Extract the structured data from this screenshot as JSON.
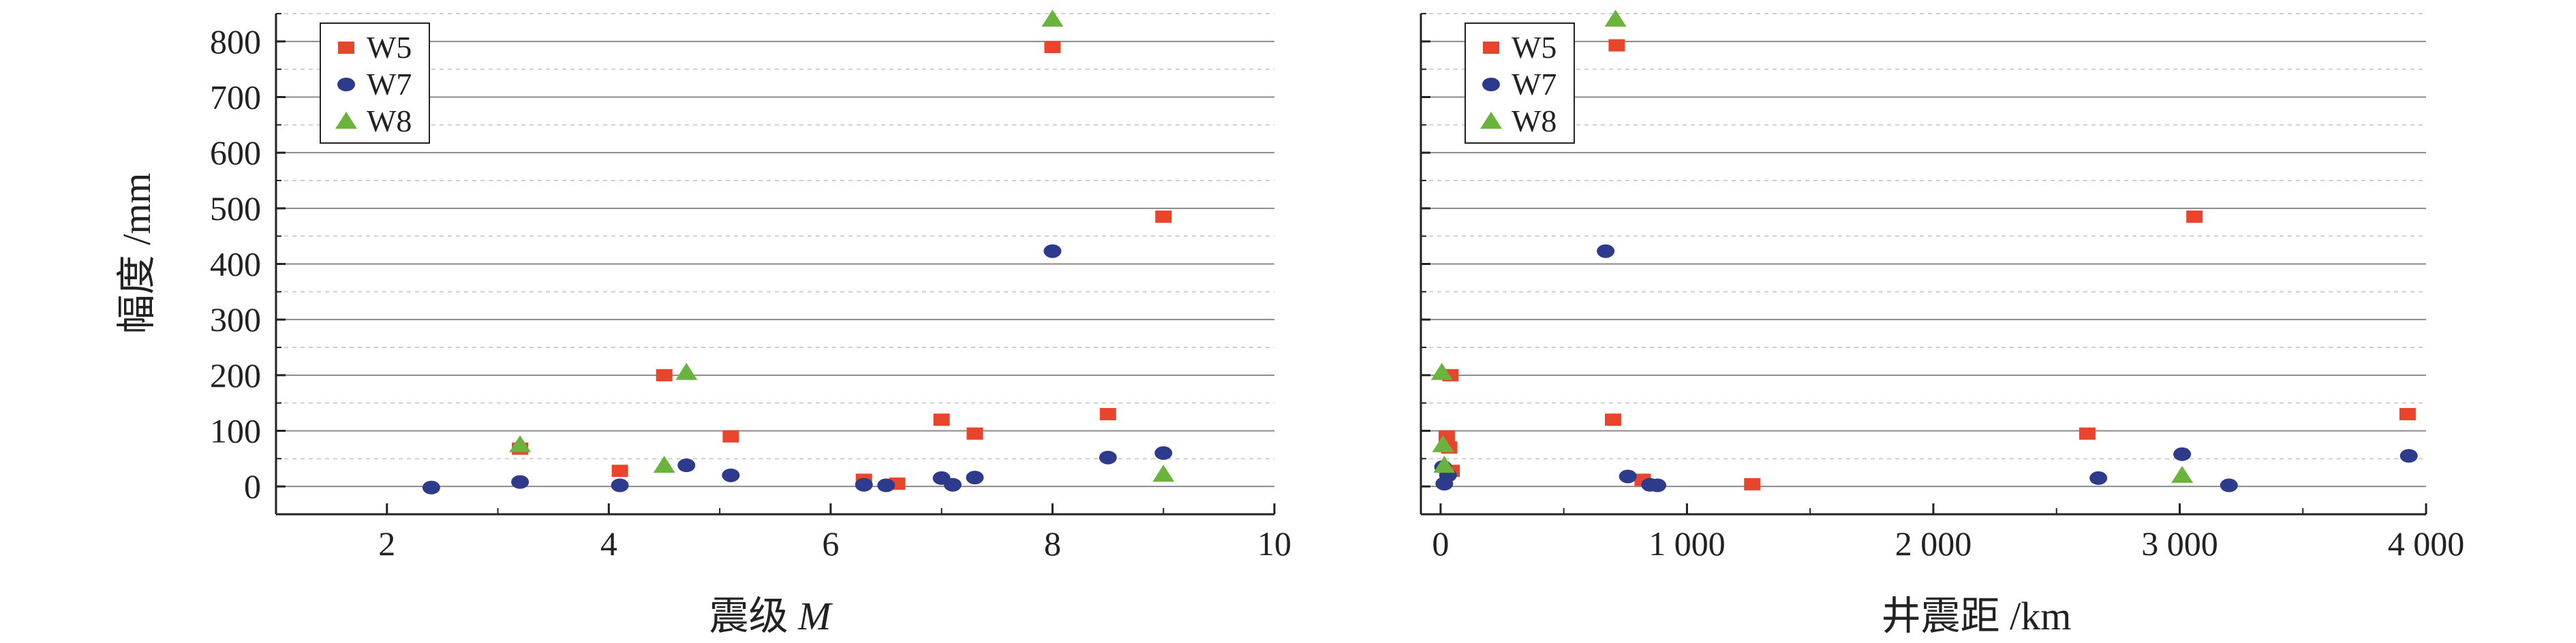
{
  "chart_data": [
    {
      "type": "scatter",
      "xlabel": "震级 M",
      "xlabel_main": "震级 ",
      "xlabel_var": "M",
      "ylabel": "幅度 /mm",
      "xlim": [
        1,
        10
      ],
      "ylim": [
        -50,
        850
      ],
      "xticks": [
        2,
        4,
        6,
        8,
        10
      ],
      "xtick_labels": [
        "2",
        "4",
        "6",
        "8",
        "10"
      ],
      "yticks": [
        0,
        100,
        200,
        300,
        400,
        500,
        600,
        700,
        800
      ],
      "ytick_labels": [
        "0",
        "100",
        "200",
        "300",
        "400",
        "500",
        "600",
        "700",
        "800"
      ],
      "grid": true,
      "legend_position": "top-left",
      "series": [
        {
          "name": "W5",
          "marker": "square",
          "color": "#e8452c",
          "points": [
            [
              3.2,
              68
            ],
            [
              4.1,
              28
            ],
            [
              4.5,
              200
            ],
            [
              5.1,
              90
            ],
            [
              6.3,
              12
            ],
            [
              6.6,
              5
            ],
            [
              7.0,
              120
            ],
            [
              7.3,
              95
            ],
            [
              8.0,
              790
            ],
            [
              8.5,
              130
            ],
            [
              9.0,
              485
            ]
          ]
        },
        {
          "name": "W7",
          "marker": "circle",
          "color": "#2e3a8c",
          "points": [
            [
              2.4,
              -2
            ],
            [
              3.2,
              8
            ],
            [
              4.1,
              2
            ],
            [
              4.7,
              38
            ],
            [
              5.1,
              20
            ],
            [
              6.3,
              3
            ],
            [
              6.5,
              2
            ],
            [
              7.0,
              15
            ],
            [
              7.1,
              3
            ],
            [
              7.3,
              16
            ],
            [
              8.0,
              423
            ],
            [
              8.5,
              52
            ],
            [
              9.0,
              60
            ]
          ]
        },
        {
          "name": "W8",
          "marker": "triangle",
          "color": "#6ab43e",
          "points": [
            [
              3.2,
              75
            ],
            [
              4.5,
              38
            ],
            [
              4.7,
              205
            ],
            [
              8.0,
              840
            ],
            [
              9.0,
              22
            ]
          ]
        }
      ]
    },
    {
      "type": "scatter",
      "xlabel": "井震距 /km",
      "ylabel": "",
      "xlim": [
        -80,
        4000
      ],
      "ylim": [
        -50,
        850
      ],
      "xticks": [
        0,
        1000,
        2000,
        3000,
        4000
      ],
      "xtick_labels": [
        "0",
        "1 000",
        "2 000",
        "3 000",
        "4 000"
      ],
      "yticks": [
        0,
        100,
        200,
        300,
        400,
        500,
        600,
        700,
        800
      ],
      "grid": true,
      "legend_position": "top-left",
      "series": [
        {
          "name": "W5",
          "marker": "square",
          "color": "#e8452c",
          "points": [
            [
              40,
              200
            ],
            [
              25,
              90
            ],
            [
              35,
              70
            ],
            [
              45,
              28
            ],
            [
              700,
              120
            ],
            [
              715,
              793
            ],
            [
              820,
              12
            ],
            [
              1265,
              4
            ],
            [
              2625,
              95
            ],
            [
              3060,
              485
            ],
            [
              3925,
              130
            ]
          ]
        },
        {
          "name": "W7",
          "marker": "circle",
          "color": "#2e3a8c",
          "points": [
            [
              10,
              35
            ],
            [
              15,
              5
            ],
            [
              30,
              20
            ],
            [
              670,
              423
            ],
            [
              760,
              18
            ],
            [
              850,
              3
            ],
            [
              880,
              2
            ],
            [
              2670,
              15
            ],
            [
              3010,
              58
            ],
            [
              3200,
              2
            ],
            [
              3930,
              55
            ]
          ]
        },
        {
          "name": "W8",
          "marker": "triangle",
          "color": "#6ab43e",
          "points": [
            [
              5,
              205
            ],
            [
              10,
              75
            ],
            [
              15,
              38
            ],
            [
              710,
              840
            ],
            [
              3010,
              20
            ]
          ]
        }
      ]
    }
  ]
}
